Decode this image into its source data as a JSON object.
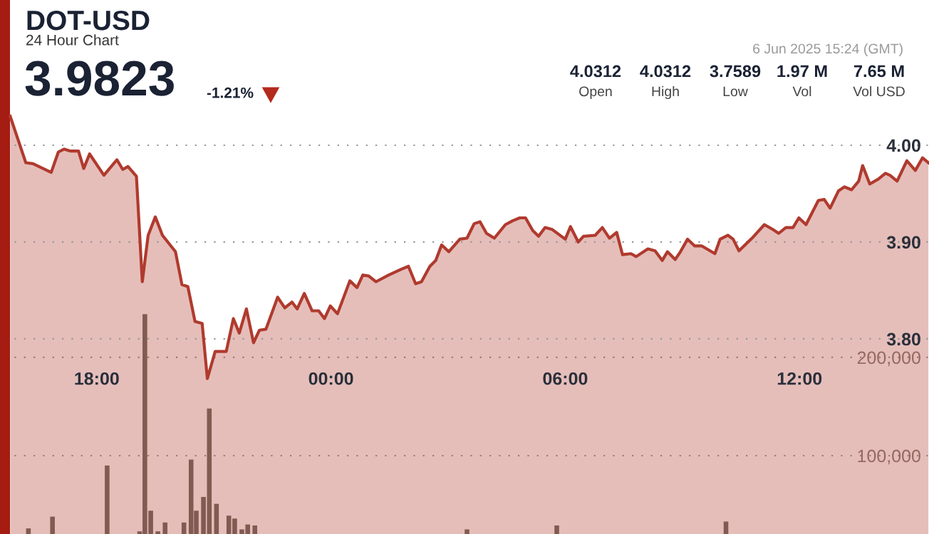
{
  "chart_data": {
    "type": "area",
    "title": "DOT-USD",
    "subtitle": "24 Hour Chart",
    "annotations": [
      "3.9823",
      "-1.21%",
      "4.0312",
      "Open",
      "4.0312",
      "High",
      "3.7589",
      "Low",
      "1.97 M",
      "Vol",
      "7.65 M",
      "Vol USD",
      "6 Jun 2025 15:24 (GMT)"
    ],
    "series": [
      {
        "color": "#b03a2e",
        "x": [
          "2025-06-05T15:47",
          "2025-06-05T15:59",
          "2025-06-05T16:11",
          "2025-06-05T16:22",
          "2025-06-05T16:50",
          "2025-06-05T17:01",
          "2025-06-05T17:10",
          "2025-06-05T17:20",
          "2025-06-05T17:32",
          "2025-06-05T17:40",
          "2025-06-05T17:49",
          "2025-06-05T18:11",
          "2025-06-05T18:31",
          "2025-06-05T18:40",
          "2025-06-05T18:48",
          "2025-06-05T19:01",
          "2025-06-05T19:10",
          "2025-06-05T19:19",
          "2025-06-05T19:30",
          "2025-06-05T19:41",
          "2025-06-05T20:01",
          "2025-06-05T20:11",
          "2025-06-05T20:20",
          "2025-06-05T20:31",
          "2025-06-05T20:42",
          "2025-06-05T20:50",
          "2025-06-05T21:02",
          "2025-06-05T21:19",
          "2025-06-05T21:30",
          "2025-06-05T21:39",
          "2025-06-05T21:50",
          "2025-06-05T22:01",
          "2025-06-05T22:10",
          "2025-06-05T22:20",
          "2025-06-05T22:38",
          "2025-06-05T22:49",
          "2025-06-05T23:00",
          "2025-06-05T23:08",
          "2025-06-05T23:19",
          "2025-06-05T23:31",
          "2025-06-05T23:41",
          "2025-06-05T23:50",
          "2025-06-05T23:59",
          "2025-06-06T00:10",
          "2025-06-06T00:29",
          "2025-06-06T00:40",
          "2025-06-06T00:49",
          "2025-06-06T00:58",
          "2025-06-06T01:09",
          "2025-06-06T01:29",
          "2025-06-06T01:48",
          "2025-06-06T01:59",
          "2025-06-06T02:10",
          "2025-06-06T02:19",
          "2025-06-06T02:32",
          "2025-06-06T02:41",
          "2025-06-06T02:50",
          "2025-06-06T03:01",
          "2025-06-06T03:18",
          "2025-06-06T03:29",
          "2025-06-06T03:40",
          "2025-06-06T03:49",
          "2025-06-06T03:59",
          "2025-06-06T04:11",
          "2025-06-06T04:28",
          "2025-06-06T04:39",
          "2025-06-06T04:50",
          "2025-06-06T04:59",
          "2025-06-06T05:10",
          "2025-06-06T05:19",
          "2025-06-06T05:29",
          "2025-06-06T05:40",
          "2025-06-06T06:00",
          "2025-06-06T06:08",
          "2025-06-06T06:20",
          "2025-06-06T06:28",
          "2025-06-06T06:46",
          "2025-06-06T06:57",
          "2025-06-06T07:08",
          "2025-06-06T07:19",
          "2025-06-06T07:28",
          "2025-06-06T07:41",
          "2025-06-06T07:49",
          "2025-06-06T08:07",
          "2025-06-06T08:18",
          "2025-06-06T08:29",
          "2025-06-06T08:37",
          "2025-06-06T08:49",
          "2025-06-06T08:57",
          "2025-06-06T09:08",
          "2025-06-06T09:19",
          "2025-06-06T09:30",
          "2025-06-06T09:50",
          "2025-06-06T09:58",
          "2025-06-06T10:10",
          "2025-06-06T10:18",
          "2025-06-06T10:27",
          "2025-06-06T10:47",
          "2025-06-06T11:06",
          "2025-06-06T11:19",
          "2025-06-06T11:28",
          "2025-06-06T11:39",
          "2025-06-06T11:50",
          "2025-06-06T11:59",
          "2025-06-06T12:10",
          "2025-06-06T12:29",
          "2025-06-06T12:38",
          "2025-06-06T12:47",
          "2025-06-06T13:00",
          "2025-06-06T13:09",
          "2025-06-06T13:20",
          "2025-06-06T13:31",
          "2025-06-06T13:37",
          "2025-06-06T13:48",
          "2025-06-06T14:01",
          "2025-06-06T14:12",
          "2025-06-06T14:19",
          "2025-06-06T14:30",
          "2025-06-06T14:45",
          "2025-06-06T14:58",
          "2025-06-06T15:09",
          "2025-06-06T15:18"
        ],
        "values": [
          4.03,
          4.006,
          3.982,
          3.981,
          3.972,
          3.993,
          3.996,
          3.994,
          3.994,
          3.976,
          3.991,
          3.969,
          3.985,
          3.975,
          3.978,
          3.968,
          3.859,
          3.907,
          3.926,
          3.907,
          3.89,
          3.856,
          3.854,
          3.818,
          3.816,
          3.759,
          3.787,
          3.787,
          3.821,
          3.806,
          3.831,
          3.796,
          3.809,
          3.81,
          3.843,
          3.832,
          3.838,
          3.831,
          3.847,
          3.829,
          3.829,
          3.821,
          3.834,
          3.826,
          3.86,
          3.853,
          3.866,
          3.865,
          3.859,
          3.866,
          3.872,
          3.875,
          3.857,
          3.859,
          3.875,
          3.881,
          3.897,
          3.89,
          3.903,
          3.904,
          3.919,
          3.921,
          3.909,
          3.904,
          3.918,
          3.922,
          3.925,
          3.925,
          3.912,
          3.906,
          3.915,
          3.913,
          3.903,
          3.916,
          3.9,
          3.906,
          3.907,
          3.915,
          3.904,
          3.91,
          3.887,
          3.888,
          3.885,
          3.893,
          3.891,
          3.881,
          3.89,
          3.882,
          3.89,
          3.903,
          3.896,
          3.896,
          3.888,
          3.903,
          3.907,
          3.903,
          3.891,
          3.904,
          3.918,
          3.913,
          3.909,
          3.915,
          3.915,
          3.925,
          3.918,
          3.943,
          3.944,
          3.935,
          3.953,
          3.957,
          3.954,
          3.963,
          3.979,
          3.96,
          3.965,
          3.971,
          3.969,
          3.963,
          3.984,
          3.974,
          3.987,
          3.982
        ]
      },
      {
        "type": "bar",
        "axis": "y2",
        "color": "#6b6b63",
        "x": [
          "2025-06-05T16:15",
          "2025-06-05T16:52",
          "2025-06-05T18:16",
          "2025-06-05T19:06",
          "2025-06-05T19:14",
          "2025-06-05T19:23",
          "2025-06-05T19:34",
          "2025-06-05T19:45",
          "2025-06-05T20:14",
          "2025-06-05T20:25",
          "2025-06-05T20:33",
          "2025-06-05T20:44",
          "2025-06-05T20:53",
          "2025-06-05T21:04",
          "2025-06-05T21:23",
          "2025-06-05T21:32",
          "2025-06-05T21:43",
          "2025-06-05T21:52",
          "2025-06-05T22:03",
          "2025-06-06T03:29",
          "2025-06-06T05:47",
          "2025-06-06T10:07"
        ],
        "values": [
          26000,
          38000,
          90000,
          23000,
          244000,
          44000,
          23000,
          32000,
          32000,
          96000,
          44000,
          58000,
          148000,
          51000,
          39000,
          36000,
          25000,
          30000,
          29000,
          25000,
          29000,
          33000
        ]
      }
    ],
    "xlim": [
      "2025-06-05T15:39",
      "2025-06-06T15:19"
    ],
    "xticks": [
      {
        "value": "2025-06-05T18:00",
        "label": "18:00"
      },
      {
        "value": "2025-06-06T00:00",
        "label": "00:00"
      },
      {
        "value": "2025-06-06T06:00",
        "label": "06:00"
      },
      {
        "value": "2025-06-06T12:00",
        "label": "12:00"
      }
    ],
    "ylim": [
      3.5985,
      4.15
    ],
    "yticks": [
      {
        "value": 3.8,
        "label": "3.80"
      },
      {
        "value": 3.9,
        "label": "3.90"
      },
      {
        "value": 4.0,
        "label": "4.00"
      }
    ],
    "y2lim": [
      20300,
      563700
    ],
    "y2ticks": [
      {
        "value": 100000,
        "label": "100,000"
      },
      {
        "value": 200000,
        "label": "200,000"
      }
    ],
    "grid": "y"
  }
}
